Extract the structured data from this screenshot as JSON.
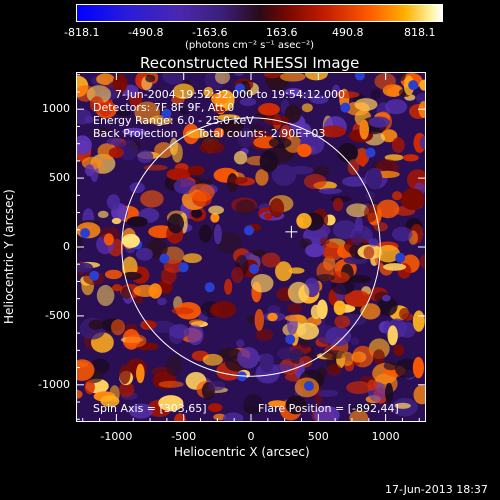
{
  "colorbar": {
    "ticks": [
      "-818.1",
      "-490.8",
      "-163.6",
      "163.6",
      "490.8",
      "818.1"
    ],
    "unit_label": "(photons cm⁻² s⁻¹ asec⁻²)",
    "min": -818.1,
    "max": 818.1
  },
  "chart_data": {
    "type": "heatmap",
    "title": "Reconstructed RHESSI Image",
    "xlabel": "Heliocentric X (arcsec)",
    "ylabel": "Heliocentric Y (arcsec)",
    "xlim": [
      -1300,
      1300
    ],
    "ylim": [
      -1270,
      1270
    ],
    "xticks": [
      -1000,
      -500,
      0,
      500,
      1000
    ],
    "yticks": [
      -1000,
      -500,
      0,
      500,
      1000
    ],
    "xtick_labels": [
      "-1000",
      "-500",
      "0",
      "500",
      "1000"
    ],
    "ytick_labels": [
      "-1000",
      "-500",
      "0",
      "500",
      "1000"
    ],
    "solar_limb_radius": 960,
    "marker": {
      "x": 300,
      "y": 110
    },
    "header_lines": [
      "7-Jun-2004 19:52:32.000 to 19:54:12.000",
      "Detectors: 7F 8F 9F, Att 0",
      "Energy Range: 6.0 - 25.0 keV",
      "Back Projection",
      "Total counts: 2.90E+03"
    ],
    "footer_left": "Spin Axis = [303,65]",
    "footer_right": "Flare Position = [-892,44]"
  },
  "timestamp": "17-Jun-2013 18:37"
}
